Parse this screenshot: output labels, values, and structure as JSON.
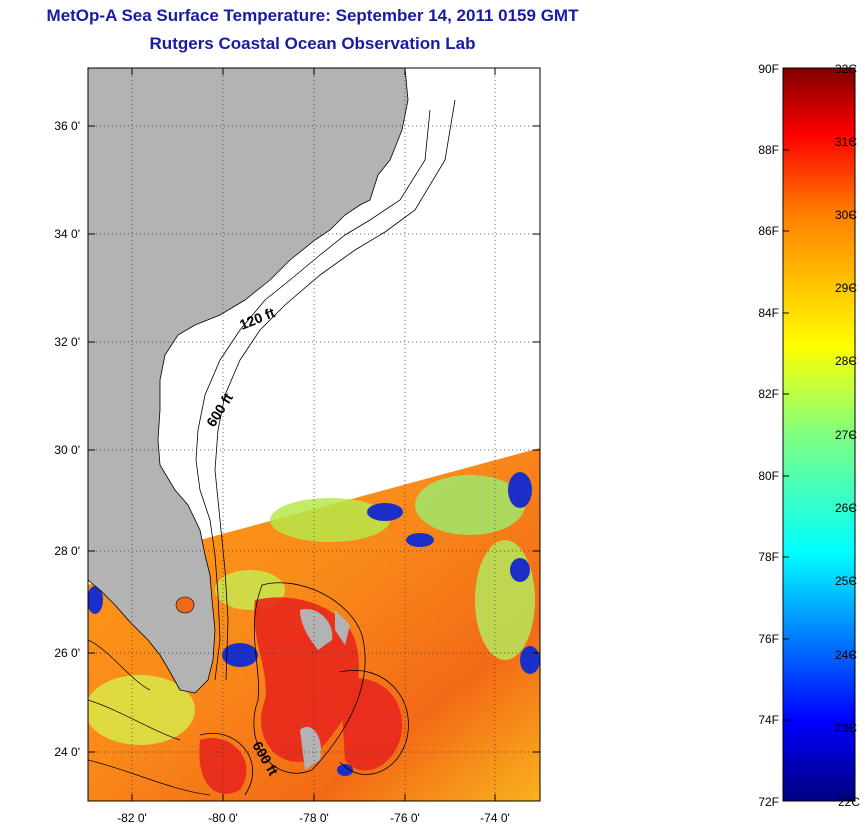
{
  "header": {
    "title": "MetOp-A Sea Surface Temperature:  September 14, 2011 0159 GMT",
    "subtitle": "Rutgers Coastal Ocean Observation Lab"
  },
  "map": {
    "lat_labels": [
      "36 0'",
      "34 0'",
      "32 0'",
      "30 0'",
      "28 0'",
      "26 0'",
      "24 0'"
    ],
    "lon_labels": [
      "-82 0'",
      "-80 0'",
      "-78 0'",
      "-76 0'",
      "-74 0'"
    ],
    "contour_labels": [
      "120 ft",
      "600 ft",
      "600 ft"
    ],
    "land_color": "#b3b3b3",
    "nodata_color": "#ffffff"
  },
  "colorbar": {
    "fahrenheit": [
      "90F",
      "88F",
      "86F",
      "84F",
      "82F",
      "80F",
      "78F",
      "76F",
      "74F",
      "72F"
    ],
    "celsius": [
      "32C",
      "31C",
      "30C",
      "29C",
      "28C",
      "27C",
      "26C",
      "25C",
      "24C",
      "23C",
      "22C"
    ],
    "colors": [
      "#00007f",
      "#0000ff",
      "#007fff",
      "#00ffff",
      "#7fff7f",
      "#ffff00",
      "#ff7f00",
      "#ff0000",
      "#7f0000"
    ]
  }
}
